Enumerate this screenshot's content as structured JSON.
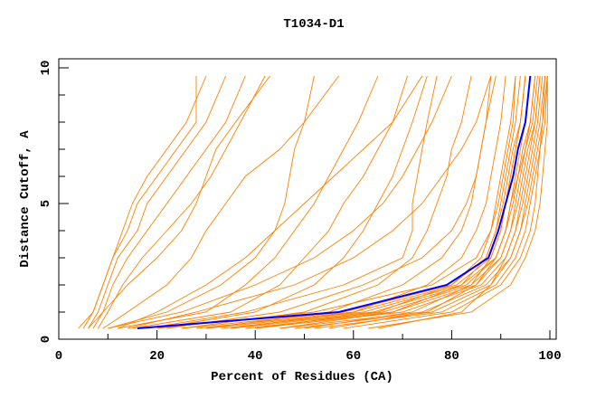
{
  "chart_data": {
    "type": "line",
    "title": "T1034-D1",
    "xlabel": "Percent of Residues (CA)",
    "ylabel": "Distance Cutoff, A",
    "xlim": [
      0,
      100
    ],
    "ylim": [
      0,
      10
    ],
    "xticks": [
      0,
      20,
      40,
      60,
      80,
      100
    ],
    "yticks": [
      0,
      5,
      10
    ],
    "grid": false,
    "legend": "none",
    "colors": {
      "models": "#ff8000",
      "highlight": "#0000ff"
    },
    "y_levels": [
      0.4,
      1,
      2,
      3,
      4,
      5,
      6,
      7,
      8,
      9.7
    ],
    "highlight_series": {
      "x": [
        16,
        57,
        79,
        87.5,
        89.5,
        91,
        92.5,
        93.5,
        95,
        96
      ]
    },
    "series": [
      {
        "x": [
          4,
          7,
          9,
          11,
          13,
          15,
          18,
          22,
          26,
          30
        ]
      },
      {
        "x": [
          6,
          8,
          10,
          12,
          16,
          18,
          22,
          26,
          30,
          34
        ]
      },
      {
        "x": [
          5,
          7,
          9,
          11,
          14,
          16,
          20,
          24,
          28,
          28
        ]
      },
      {
        "x": [
          7,
          9,
          11,
          14,
          18,
          22,
          26,
          30,
          34,
          38
        ]
      },
      {
        "x": [
          8,
          10,
          13,
          17,
          22,
          27,
          31,
          34,
          37,
          42
        ]
      },
      {
        "x": [
          6,
          9,
          14,
          20,
          25,
          28,
          30,
          32,
          36,
          43
        ]
      },
      {
        "x": [
          9,
          14,
          22,
          27,
          30,
          34,
          38,
          45,
          50,
          57
        ]
      },
      {
        "x": [
          12,
          30,
          38,
          44,
          48,
          52,
          55,
          58,
          61,
          65
        ]
      },
      {
        "x": [
          10,
          22,
          33,
          40,
          44,
          46,
          47,
          48,
          50,
          52
        ]
      },
      {
        "x": [
          15,
          35,
          45,
          50,
          55,
          58,
          62,
          65,
          68,
          71
        ]
      },
      {
        "x": [
          20,
          40,
          52,
          58,
          62,
          65,
          68,
          70,
          72,
          75
        ]
      },
      {
        "x": [
          25,
          50,
          65,
          72,
          75,
          77,
          79,
          80,
          82,
          84
        ]
      },
      {
        "x": [
          30,
          55,
          70,
          78,
          82,
          84,
          85,
          86,
          87,
          88
        ]
      },
      {
        "x": [
          10,
          25,
          40,
          52,
          60,
          66,
          70,
          73,
          76,
          80
        ]
      },
      {
        "x": [
          35,
          60,
          75,
          82,
          85,
          87,
          88,
          89,
          90,
          91
        ]
      },
      {
        "x": [
          18,
          38,
          58,
          70,
          72,
          72,
          73,
          74,
          75,
          77
        ]
      },
      {
        "x": [
          22,
          45,
          62,
          74,
          80,
          83,
          85,
          86,
          87,
          89
        ]
      },
      {
        "x": [
          40,
          65,
          80,
          86,
          88,
          89,
          90,
          91,
          92,
          93
        ]
      },
      {
        "x": [
          45,
          68,
          82,
          87,
          89,
          90,
          91,
          92,
          93,
          94
        ]
      },
      {
        "x": [
          50,
          72,
          84,
          88,
          90,
          91,
          92,
          93,
          94,
          95
        ]
      },
      {
        "x": [
          55,
          75,
          85,
          89,
          91,
          92,
          93,
          94,
          95,
          96
        ]
      },
      {
        "x": [
          20,
          52,
          76,
          85,
          88,
          89.5,
          90.5,
          91.5,
          92.5,
          93
        ]
      },
      {
        "x": [
          25,
          58,
          80,
          87,
          89,
          90.5,
          91.5,
          92.5,
          94,
          95
        ]
      },
      {
        "x": [
          30,
          62,
          82,
          89,
          91,
          92.5,
          93.5,
          94.5,
          96,
          97
        ]
      },
      {
        "x": [
          35,
          66,
          84,
          90,
          92,
          93.5,
          94.5,
          95.5,
          97,
          98
        ]
      },
      {
        "x": [
          40,
          70,
          86,
          91,
          93,
          94.5,
          95.5,
          96.5,
          97.5,
          98.5
        ]
      },
      {
        "x": [
          45,
          74,
          87,
          92,
          94,
          95.5,
          96.5,
          97.5,
          98.5,
          99
        ]
      },
      {
        "x": [
          28,
          60,
          81,
          88,
          90,
          91,
          92,
          93,
          94,
          95
        ]
      },
      {
        "x": [
          33,
          64,
          83,
          89,
          91,
          92,
          93.5,
          95,
          96,
          97
        ]
      },
      {
        "x": [
          38,
          68,
          85,
          90,
          92,
          93,
          94,
          95,
          96.5,
          97.5
        ]
      },
      {
        "x": [
          48,
          76,
          88,
          92,
          94,
          95,
          96,
          97,
          98,
          99
        ]
      },
      {
        "x": [
          52,
          78,
          89,
          93,
          95,
          96,
          97,
          98,
          98.5,
          99.5
        ]
      },
      {
        "x": [
          58,
          80,
          90,
          94,
          96,
          97,
          97.5,
          98,
          99,
          99.5
        ]
      },
      {
        "x": [
          63,
          84,
          92,
          95,
          97,
          98,
          98.5,
          99,
          99.5,
          99.5
        ]
      },
      {
        "x": [
          14,
          28,
          48,
          60,
          68,
          74,
          78,
          82,
          85,
          88
        ]
      },
      {
        "x": [
          12,
          20,
          30,
          38,
          44,
          50,
          56,
          62,
          68,
          74
        ]
      },
      {
        "x": [
          65,
          82,
          88,
          91,
          93,
          94,
          95,
          96,
          97,
          98
        ]
      }
    ]
  }
}
